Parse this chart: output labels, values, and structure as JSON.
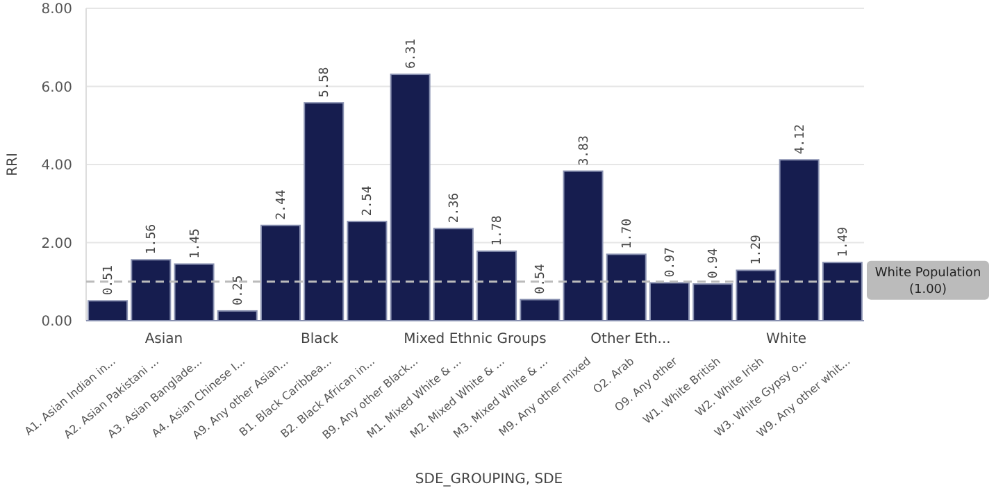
{
  "chart_data": {
    "type": "bar",
    "xlabel": "SDE_GROUPING, SDE",
    "ylabel": "RRI",
    "categories": [
      "A1. Asian Indian in...",
      "A2. Asian Pakistani ...",
      "A3. Asian Banglade...",
      "A4. Asian Chinese I...",
      "A9. Any other Asian...",
      "B1. Black Caribbea...",
      "B2. Black African in...",
      "B9. Any other Black...",
      "M1. Mixed White & ...",
      "M2. Mixed White & ...",
      "M3. Mixed White & ...",
      "M9. Any other mixed",
      "O2. Arab",
      "O9. Any other",
      "W1. White British",
      "W2. White Irish",
      "W3. White Gypsy o...",
      "W9. Any other whit..."
    ],
    "values": [
      0.51,
      1.56,
      1.45,
      0.25,
      2.44,
      5.58,
      2.54,
      6.31,
      2.36,
      1.78,
      0.54,
      3.83,
      1.7,
      0.97,
      0.94,
      1.29,
      4.12,
      1.49
    ],
    "color": "#161d4f",
    "value_labels": [
      "0.51",
      "1.56",
      "1.45",
      "0.25",
      "2.44",
      "5.58",
      "2.54",
      "6.31",
      "2.36",
      "1.78",
      "0.54",
      "3.83",
      "1.70",
      "0.97",
      "0.94",
      "1.29",
      "4.12",
      "1.49"
    ],
    "ylim": [
      0,
      8
    ],
    "yticks": [
      {
        "value": 0,
        "label": "0.00"
      },
      {
        "value": 2,
        "label": "2.00"
      },
      {
        "value": 4,
        "label": "4.00"
      },
      {
        "value": 6,
        "label": "6.00"
      },
      {
        "value": 8,
        "label": "8.00"
      }
    ],
    "grid": "y",
    "ref_lines": [
      {
        "axis": "y",
        "value": 1,
        "label": "White Population (1.00)",
        "color": "#bbbbbb",
        "line_style": "dashed"
      }
    ],
    "annotations": [
      "Asian",
      "Black",
      "Mixed Ethnic Groups",
      "Other Eth...",
      "White"
    ]
  }
}
